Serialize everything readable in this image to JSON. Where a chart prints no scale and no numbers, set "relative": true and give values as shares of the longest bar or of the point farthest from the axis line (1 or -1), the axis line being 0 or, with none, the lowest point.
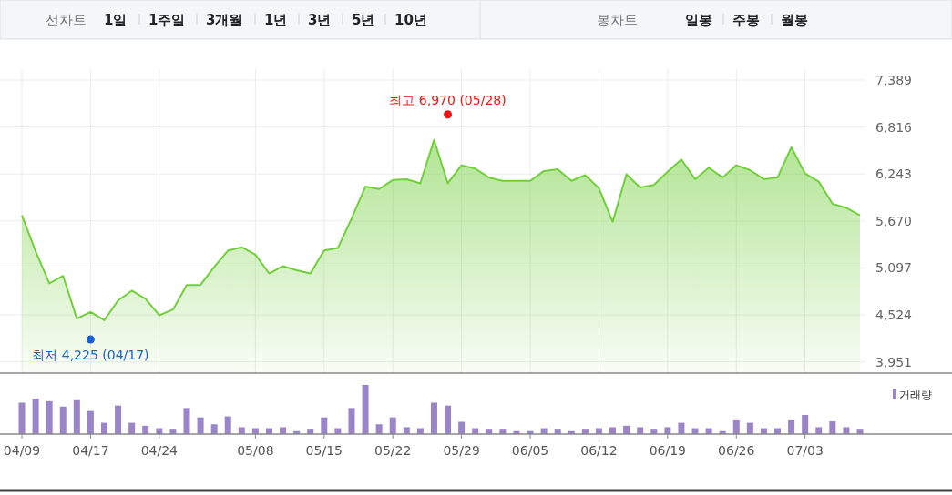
{
  "chart_data": [
    {
      "type": "area",
      "annotations": [
        "선차트",
        "1일",
        "1주일",
        "3개월",
        "1년",
        "3년",
        "5년",
        "10년",
        "봉차트",
        "일봉",
        "주봉",
        "월봉"
      ],
      "categories": [
        null,
        null,
        null,
        null,
        null,
        null,
        null,
        null,
        null,
        null,
        null,
        null,
        null,
        null,
        null,
        null,
        null,
        null,
        null,
        null,
        null,
        null,
        null,
        null,
        null,
        null,
        null,
        null,
        null,
        null,
        null,
        null,
        null,
        null,
        null,
        null,
        null,
        null,
        null,
        null,
        null,
        null,
        null,
        null,
        null,
        null,
        null,
        null,
        null,
        null,
        null,
        null,
        null,
        null,
        null,
        null,
        null,
        null,
        null,
        null,
        null,
        null
      ],
      "ylim": [
        3815,
        7389
      ],
      "yticks": [
        {
          "value": 3951,
          "label": "3,951"
        },
        {
          "value": 4524,
          "label": "4,524"
        },
        {
          "value": 5097,
          "label": "5,097"
        },
        {
          "value": 5670,
          "label": "5,670"
        },
        {
          "value": 6243,
          "label": "6,243"
        },
        {
          "value": 6816,
          "label": "6,816"
        },
        {
          "value": 7389,
          "label": "7,389"
        }
      ],
      "grid": true,
      "tick_labels": "y",
      "series": [
        {
          "type": "area",
          "color": "#72cf3c",
          "values": [
            5740,
            5300,
            4910,
            5000,
            4480,
            4560,
            4460,
            4700,
            4820,
            4720,
            4520,
            4590,
            4890,
            4890,
            5110,
            5310,
            5350,
            5260,
            5030,
            5120,
            5070,
            5030,
            5310,
            5340,
            5700,
            6090,
            6060,
            6170,
            6180,
            6130,
            6660,
            6130,
            6350,
            6310,
            6200,
            6160,
            6160,
            6160,
            6280,
            6300,
            6160,
            6230,
            6070,
            5660,
            6240,
            6080,
            6110,
            6270,
            6420,
            6180,
            6320,
            6200,
            6350,
            6290,
            6180,
            6200,
            6570,
            6250,
            6150,
            5880,
            5830,
            5740
          ]
        },
        {
          "type": "scatter",
          "marker": "circle",
          "values": [
            null,
            null,
            null,
            null,
            null,
            4225,
            null,
            null,
            null,
            null,
            null,
            null,
            null,
            null,
            null,
            null,
            null,
            null,
            null,
            null,
            null,
            null,
            null,
            null,
            null,
            null,
            null,
            null,
            null,
            null,
            null,
            6970,
            null,
            null,
            null,
            null,
            null,
            null,
            null,
            null,
            null,
            null,
            null,
            null,
            null,
            null,
            null,
            null,
            null,
            null,
            null,
            null,
            null,
            null,
            null,
            null,
            null,
            null,
            null,
            null,
            null,
            null
          ],
          "colors": [
            null,
            null,
            null,
            null,
            null,
            "#1a5fd0",
            null,
            null,
            null,
            null,
            null,
            null,
            null,
            null,
            null,
            null,
            null,
            null,
            null,
            null,
            null,
            null,
            null,
            null,
            null,
            null,
            null,
            null,
            null,
            null,
            null,
            "#f01414",
            null,
            null,
            null,
            null,
            null,
            null,
            null,
            null,
            null,
            null,
            null,
            null,
            null,
            null,
            null,
            null,
            null,
            null,
            null,
            null,
            null,
            null,
            null,
            null,
            null,
            null,
            null,
            null,
            null,
            null
          ],
          "value_labels": [
            null,
            null,
            null,
            null,
            null,
            "최저 4,225 (04/17)",
            null,
            null,
            null,
            null,
            null,
            null,
            null,
            null,
            null,
            null,
            null,
            null,
            null,
            null,
            null,
            null,
            null,
            null,
            null,
            null,
            null,
            null,
            null,
            null,
            null,
            "최고 6,970 (05/28)",
            null,
            null,
            null,
            null,
            null,
            null,
            null,
            null,
            null,
            null,
            null,
            null,
            null,
            null,
            null,
            null,
            null,
            null,
            null,
            null,
            null,
            null,
            null,
            null,
            null,
            null,
            null,
            null,
            null,
            null
          ]
        }
      ]
    },
    {
      "type": "bar",
      "relative": true,
      "legend": "top right",
      "categories": [
        "04/09",
        null,
        null,
        null,
        null,
        "04/17",
        null,
        null,
        null,
        null,
        "04/24",
        null,
        null,
        null,
        null,
        null,
        null,
        "05/08",
        null,
        null,
        null,
        null,
        "05/15",
        null,
        null,
        null,
        null,
        "05/22",
        null,
        null,
        null,
        null,
        "05/29",
        null,
        null,
        null,
        null,
        "06/05",
        null,
        null,
        null,
        null,
        "06/12",
        null,
        null,
        null,
        null,
        "06/19",
        null,
        null,
        null,
        null,
        "06/26",
        null,
        null,
        null,
        null,
        "07/03",
        null,
        null,
        null,
        null
      ],
      "series": [
        {
          "name": "거래량",
          "color": "#9b85c9",
          "values": [
            0.64,
            0.72,
            0.67,
            0.56,
            0.69,
            0.47,
            0.23,
            0.58,
            0.23,
            0.17,
            0.12,
            0.09,
            0.53,
            0.34,
            0.2,
            0.36,
            0.14,
            0.12,
            0.12,
            0.14,
            0.06,
            0.09,
            0.34,
            0.12,
            0.53,
            1,
            0.2,
            0.34,
            0.14,
            0.12,
            0.64,
            0.58,
            0.25,
            0.12,
            0.09,
            0.09,
            0.06,
            0.06,
            0.12,
            0.09,
            0.06,
            0.09,
            0.12,
            0.14,
            0.17,
            0.14,
            0.09,
            0.14,
            0.23,
            0.12,
            0.12,
            0.06,
            0.28,
            0.23,
            0.12,
            0.12,
            0.28,
            0.39,
            0.14,
            0.26,
            0.14,
            0.09
          ]
        }
      ]
    }
  ]
}
